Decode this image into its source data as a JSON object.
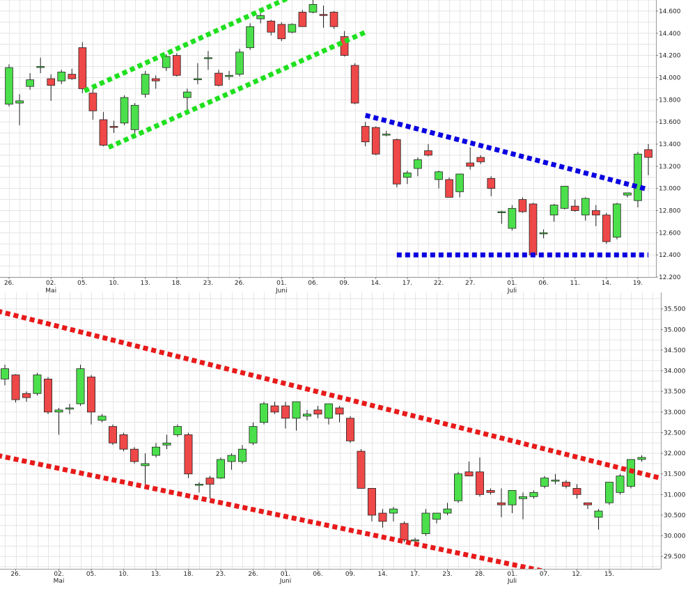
{
  "chart_data": [
    {
      "type": "candlestick",
      "ylim": [
        12200,
        14700
      ],
      "yticks": [
        12200,
        12400,
        12600,
        12800,
        13000,
        13200,
        13400,
        13600,
        13800,
        14000,
        14200,
        14400,
        14600
      ],
      "ytick_labels": [
        "12.200",
        "12.400",
        "12.600",
        "12.800",
        "13.000",
        "13.200",
        "13.400",
        "13.600",
        "13.800",
        "14.000",
        "14.200",
        "14.400",
        "14.600"
      ],
      "xticks": [
        {
          "index": 0,
          "label": "26."
        },
        {
          "index": 4,
          "label": "02.",
          "month": "Mai"
        },
        {
          "index": 7,
          "label": "05."
        },
        {
          "index": 10,
          "label": "10."
        },
        {
          "index": 13,
          "label": "13."
        },
        {
          "index": 16,
          "label": "18."
        },
        {
          "index": 19,
          "label": "23."
        },
        {
          "index": 22,
          "label": "26."
        },
        {
          "index": 26,
          "label": "01.",
          "month": "Juni"
        },
        {
          "index": 29,
          "label": "06."
        },
        {
          "index": 32,
          "label": "09."
        },
        {
          "index": 35,
          "label": "14."
        },
        {
          "index": 38,
          "label": "17."
        },
        {
          "index": 41,
          "label": "22."
        },
        {
          "index": 44,
          "label": "27."
        },
        {
          "index": 48,
          "label": "01.",
          "month": "Juli"
        },
        {
          "index": 51,
          "label": "06."
        },
        {
          "index": 54,
          "label": "11."
        },
        {
          "index": 57,
          "label": "14."
        },
        {
          "index": 60,
          "label": "19."
        }
      ],
      "candles": [
        {
          "o": 13760,
          "h": 14120,
          "l": 13740,
          "c": 14090
        },
        {
          "o": 13770,
          "h": 13850,
          "l": 13570,
          "c": 13790
        },
        {
          "o": 13920,
          "h": 14040,
          "l": 13890,
          "c": 13980
        },
        {
          "o": 14100,
          "h": 14180,
          "l": 14040,
          "c": 14100
        },
        {
          "o": 13990,
          "h": 14030,
          "l": 13790,
          "c": 13930
        },
        {
          "o": 13970,
          "h": 14070,
          "l": 13940,
          "c": 14050
        },
        {
          "o": 14030,
          "h": 14080,
          "l": 13980,
          "c": 13990
        },
        {
          "o": 14270,
          "h": 14320,
          "l": 13860,
          "c": 13900
        },
        {
          "o": 13860,
          "h": 13900,
          "l": 13620,
          "c": 13700
        },
        {
          "o": 13620,
          "h": 13690,
          "l": 13380,
          "c": 13390
        },
        {
          "o": 13560,
          "h": 13610,
          "l": 13500,
          "c": 13550
        },
        {
          "o": 13590,
          "h": 13840,
          "l": 13570,
          "c": 13820
        },
        {
          "o": 13530,
          "h": 13770,
          "l": 13480,
          "c": 13750
        },
        {
          "o": 13850,
          "h": 14060,
          "l": 13820,
          "c": 14030
        },
        {
          "o": 13990,
          "h": 14020,
          "l": 13900,
          "c": 13970
        },
        {
          "o": 14090,
          "h": 14210,
          "l": 14060,
          "c": 14190
        },
        {
          "o": 14200,
          "h": 14220,
          "l": 14010,
          "c": 14020
        },
        {
          "o": 13820,
          "h": 13900,
          "l": 13710,
          "c": 13870
        },
        {
          "o": 13980,
          "h": 14130,
          "l": 13940,
          "c": 13990
        },
        {
          "o": 14180,
          "h": 14240,
          "l": 14070,
          "c": 14180
        },
        {
          "o": 14040,
          "h": 14070,
          "l": 13920,
          "c": 13930
        },
        {
          "o": 14010,
          "h": 14060,
          "l": 13980,
          "c": 14020
        },
        {
          "o": 14030,
          "h": 14260,
          "l": 14010,
          "c": 14230
        },
        {
          "o": 14270,
          "h": 14490,
          "l": 14250,
          "c": 14460
        },
        {
          "o": 14530,
          "h": 14590,
          "l": 14490,
          "c": 14560
        },
        {
          "o": 14510,
          "h": 14520,
          "l": 14380,
          "c": 14410
        },
        {
          "o": 14480,
          "h": 14500,
          "l": 14330,
          "c": 14350
        },
        {
          "o": 14410,
          "h": 14490,
          "l": 14400,
          "c": 14480
        },
        {
          "o": 14590,
          "h": 14610,
          "l": 14460,
          "c": 14460
        },
        {
          "o": 14590,
          "h": 14700,
          "l": 14580,
          "c": 14660
        },
        {
          "o": 14570,
          "h": 14650,
          "l": 14450,
          "c": 14560
        },
        {
          "o": 14590,
          "h": 14600,
          "l": 14440,
          "c": 14460
        },
        {
          "o": 14370,
          "h": 14420,
          "l": 14190,
          "c": 14200
        },
        {
          "o": 14110,
          "h": 14130,
          "l": 13760,
          "c": 13770
        },
        {
          "o": 13560,
          "h": 13600,
          "l": 13380,
          "c": 13420
        },
        {
          "o": 13550,
          "h": 13560,
          "l": 13300,
          "c": 13310
        },
        {
          "o": 13490,
          "h": 13520,
          "l": 13470,
          "c": 13490
        },
        {
          "o": 13440,
          "h": 13450,
          "l": 13010,
          "c": 13040
        },
        {
          "o": 13100,
          "h": 13160,
          "l": 13040,
          "c": 13140
        },
        {
          "o": 13180,
          "h": 13280,
          "l": 13110,
          "c": 13260
        },
        {
          "o": 13340,
          "h": 13400,
          "l": 13290,
          "c": 13300
        },
        {
          "o": 13080,
          "h": 13160,
          "l": 13000,
          "c": 13150
        },
        {
          "o": 13080,
          "h": 13100,
          "l": 12920,
          "c": 12920
        },
        {
          "o": 12970,
          "h": 13130,
          "l": 12920,
          "c": 13130
        },
        {
          "o": 13230,
          "h": 13370,
          "l": 13170,
          "c": 13200
        },
        {
          "o": 13280,
          "h": 13300,
          "l": 13220,
          "c": 13240
        },
        {
          "o": 13090,
          "h": 13110,
          "l": 12930,
          "c": 13000
        },
        {
          "o": 12790,
          "h": 12800,
          "l": 12680,
          "c": 12790
        },
        {
          "o": 12640,
          "h": 12850,
          "l": 12620,
          "c": 12820
        },
        {
          "o": 12900,
          "h": 12920,
          "l": 12780,
          "c": 12790
        },
        {
          "o": 12860,
          "h": 12870,
          "l": 12400,
          "c": 12400
        },
        {
          "o": 12590,
          "h": 12630,
          "l": 12550,
          "c": 12600
        },
        {
          "o": 12760,
          "h": 12860,
          "l": 12700,
          "c": 12850
        },
        {
          "o": 12820,
          "h": 13020,
          "l": 12810,
          "c": 13020
        },
        {
          "o": 12840,
          "h": 12900,
          "l": 12790,
          "c": 12800
        },
        {
          "o": 12760,
          "h": 12920,
          "l": 12710,
          "c": 12910
        },
        {
          "o": 12800,
          "h": 12850,
          "l": 12660,
          "c": 12760
        },
        {
          "o": 12760,
          "h": 12780,
          "l": 12500,
          "c": 12520
        },
        {
          "o": 12560,
          "h": 12870,
          "l": 12540,
          "c": 12860
        },
        {
          "o": 12940,
          "h": 12960,
          "l": 12920,
          "c": 12960
        },
        {
          "o": 12890,
          "h": 13330,
          "l": 12830,
          "c": 13310
        },
        {
          "o": 13350,
          "h": 13400,
          "l": 13120,
          "c": 13280
        }
      ],
      "trendlines": [
        {
          "color": "#1fe01f",
          "from": {
            "index": 7.2,
            "value": 13880
          },
          "to": {
            "index": 28.3,
            "value": 14790
          }
        },
        {
          "color": "#1fe01f",
          "from": {
            "index": 9.5,
            "value": 13370
          },
          "to": {
            "index": 34.0,
            "value": 14410
          }
        },
        {
          "color": "#0a00e0",
          "from": {
            "index": 34.0,
            "value": 13660
          },
          "to": {
            "index": 61.0,
            "value": 12990
          }
        },
        {
          "color": "#0a00e0",
          "from": {
            "index": 37.0,
            "value": 12400
          },
          "to": {
            "index": 61.0,
            "value": 12400
          }
        }
      ]
    },
    {
      "type": "candlestick",
      "ylim": [
        29200,
        35900
      ],
      "yticks": [
        29500,
        30000,
        30500,
        31000,
        31500,
        32000,
        32500,
        33000,
        33500,
        34000,
        34500,
        35000,
        35500
      ],
      "ytick_labels": [
        "29.500",
        "30.000",
        "30.500",
        "31.000",
        "31.500",
        "32.000",
        "32.500",
        "33.000",
        "33.500",
        "34.000",
        "34.500",
        "35.000",
        "35.500"
      ],
      "xticks": [
        {
          "index": 1,
          "label": "26."
        },
        {
          "index": 5,
          "label": "02.",
          "month": "Mai"
        },
        {
          "index": 8,
          "label": "05."
        },
        {
          "index": 11,
          "label": "10."
        },
        {
          "index": 14,
          "label": "13."
        },
        {
          "index": 17,
          "label": "18."
        },
        {
          "index": 20,
          "label": "23."
        },
        {
          "index": 23,
          "label": "26."
        },
        {
          "index": 26,
          "label": "01.",
          "month": "Juni"
        },
        {
          "index": 29,
          "label": "06."
        },
        {
          "index": 32,
          "label": "09."
        },
        {
          "index": 35,
          "label": "14."
        },
        {
          "index": 38,
          "label": "17."
        },
        {
          "index": 41,
          "label": "23."
        },
        {
          "index": 44,
          "label": "28."
        },
        {
          "index": 47,
          "label": "01.",
          "month": "Juli"
        },
        {
          "index": 50,
          "label": "07."
        },
        {
          "index": 53,
          "label": "12."
        },
        {
          "index": 56,
          "label": "15."
        }
      ],
      "candles": [
        {
          "o": 33800,
          "h": 34150,
          "l": 33650,
          "c": 34050
        },
        {
          "o": 33900,
          "h": 33920,
          "l": 33230,
          "c": 33300
        },
        {
          "o": 33450,
          "h": 33500,
          "l": 33250,
          "c": 33350
        },
        {
          "o": 33450,
          "h": 33950,
          "l": 33400,
          "c": 33900
        },
        {
          "o": 33800,
          "h": 33850,
          "l": 32950,
          "c": 33000
        },
        {
          "o": 33000,
          "h": 33100,
          "l": 32450,
          "c": 33050
        },
        {
          "o": 33100,
          "h": 33200,
          "l": 32950,
          "c": 33100
        },
        {
          "o": 33200,
          "h": 34150,
          "l": 33150,
          "c": 34050
        },
        {
          "o": 33850,
          "h": 33900,
          "l": 32700,
          "c": 33000
        },
        {
          "o": 32800,
          "h": 32950,
          "l": 32750,
          "c": 32900
        },
        {
          "o": 32650,
          "h": 32700,
          "l": 32200,
          "c": 32250
        },
        {
          "o": 32450,
          "h": 32500,
          "l": 32050,
          "c": 32100
        },
        {
          "o": 32100,
          "h": 32150,
          "l": 31750,
          "c": 31800
        },
        {
          "o": 31700,
          "h": 32000,
          "l": 31250,
          "c": 31750
        },
        {
          "o": 31950,
          "h": 32250,
          "l": 31900,
          "c": 32150
        },
        {
          "o": 32200,
          "h": 32450,
          "l": 32100,
          "c": 32250
        },
        {
          "o": 32450,
          "h": 32700,
          "l": 32400,
          "c": 32650
        },
        {
          "o": 32450,
          "h": 32500,
          "l": 31400,
          "c": 31500
        },
        {
          "o": 31250,
          "h": 31300,
          "l": 31050,
          "c": 31250
        },
        {
          "o": 31400,
          "h": 31450,
          "l": 30900,
          "c": 31250
        },
        {
          "o": 31400,
          "h": 31900,
          "l": 31380,
          "c": 31850
        },
        {
          "o": 31800,
          "h": 32000,
          "l": 31600,
          "c": 31950
        },
        {
          "o": 31800,
          "h": 32200,
          "l": 31750,
          "c": 32100
        },
        {
          "o": 32250,
          "h": 32750,
          "l": 32200,
          "c": 32650
        },
        {
          "o": 32750,
          "h": 33250,
          "l": 32700,
          "c": 33200
        },
        {
          "o": 33150,
          "h": 33250,
          "l": 32950,
          "c": 33000
        },
        {
          "o": 33150,
          "h": 33250,
          "l": 32600,
          "c": 32850
        },
        {
          "o": 32850,
          "h": 33250,
          "l": 32550,
          "c": 33250
        },
        {
          "o": 32900,
          "h": 33050,
          "l": 32800,
          "c": 32950
        },
        {
          "o": 33050,
          "h": 33150,
          "l": 32850,
          "c": 32950
        },
        {
          "o": 32850,
          "h": 33200,
          "l": 32700,
          "c": 33200
        },
        {
          "o": 33100,
          "h": 33150,
          "l": 32750,
          "c": 32950
        },
        {
          "o": 32850,
          "h": 32900,
          "l": 32250,
          "c": 32300
        },
        {
          "o": 32050,
          "h": 32100,
          "l": 31150,
          "c": 31150
        },
        {
          "o": 31150,
          "h": 31150,
          "l": 30350,
          "c": 30500
        },
        {
          "o": 30550,
          "h": 30650,
          "l": 30200,
          "c": 30350
        },
        {
          "o": 30550,
          "h": 30700,
          "l": 30350,
          "c": 30650
        },
        {
          "o": 30300,
          "h": 30350,
          "l": 29850,
          "c": 29900
        },
        {
          "o": 29900,
          "h": 29950,
          "l": 29850,
          "c": 29900
        },
        {
          "o": 30050,
          "h": 30650,
          "l": 30000,
          "c": 30550
        },
        {
          "o": 30400,
          "h": 30550,
          "l": 30300,
          "c": 30550
        },
        {
          "o": 30550,
          "h": 30800,
          "l": 30500,
          "c": 30650
        },
        {
          "o": 30850,
          "h": 31550,
          "l": 30800,
          "c": 31500
        },
        {
          "o": 31550,
          "h": 31800,
          "l": 31450,
          "c": 31450
        },
        {
          "o": 31550,
          "h": 31900,
          "l": 30950,
          "c": 31000
        },
        {
          "o": 31100,
          "h": 31150,
          "l": 31000,
          "c": 31050
        },
        {
          "o": 30800,
          "h": 31150,
          "l": 30450,
          "c": 30750
        },
        {
          "o": 30750,
          "h": 31100,
          "l": 30550,
          "c": 31100
        },
        {
          "o": 30900,
          "h": 31050,
          "l": 30400,
          "c": 30950
        },
        {
          "o": 30950,
          "h": 31100,
          "l": 30900,
          "c": 31050
        },
        {
          "o": 31200,
          "h": 31450,
          "l": 31150,
          "c": 31400
        },
        {
          "o": 31350,
          "h": 31500,
          "l": 31250,
          "c": 31350
        },
        {
          "o": 31300,
          "h": 31350,
          "l": 31150,
          "c": 31200
        },
        {
          "o": 31150,
          "h": 31250,
          "l": 30900,
          "c": 31000
        },
        {
          "o": 30800,
          "h": 30800,
          "l": 30650,
          "c": 30750
        },
        {
          "o": 30450,
          "h": 30650,
          "l": 30150,
          "c": 30600
        },
        {
          "o": 30800,
          "h": 31300,
          "l": 30750,
          "c": 31300
        },
        {
          "o": 31050,
          "h": 31500,
          "l": 31000,
          "c": 31450
        },
        {
          "o": 31200,
          "h": 31850,
          "l": 31150,
          "c": 31850
        },
        {
          "o": 31850,
          "h": 31950,
          "l": 31800,
          "c": 31900
        }
      ],
      "trendlines": [
        {
          "color": "#e81a1a",
          "from": {
            "index": -0.7,
            "value": 35450
          },
          "to": {
            "index": 60.7,
            "value": 31400
          }
        },
        {
          "color": "#e81a1a",
          "from": {
            "index": -0.7,
            "value": 31950
          },
          "to": {
            "index": 54.3,
            "value": 28900
          }
        }
      ]
    }
  ]
}
